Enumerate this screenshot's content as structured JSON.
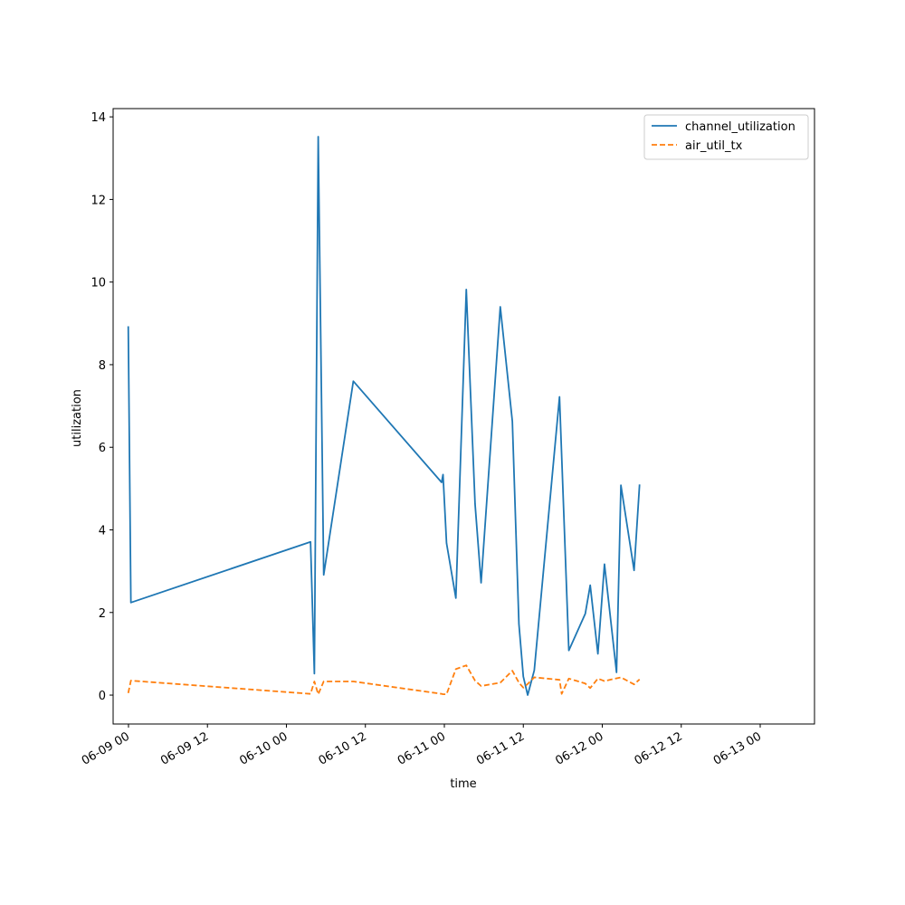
{
  "chart_data": {
    "type": "line",
    "xlabel": "time",
    "ylabel": "utilization",
    "x_axis": {
      "kind": "datetime",
      "range": [
        "2023-06-08 21:40",
        "2023-06-13 08:15"
      ],
      "ticks": [
        {
          "t": "2023-06-09 00:00",
          "label": "06-09 00"
        },
        {
          "t": "2023-06-09 12:00",
          "label": "06-09 12"
        },
        {
          "t": "2023-06-10 00:00",
          "label": "06-10 00"
        },
        {
          "t": "2023-06-10 12:00",
          "label": "06-10 12"
        },
        {
          "t": "2023-06-11 00:00",
          "label": "06-11 00"
        },
        {
          "t": "2023-06-11 12:00",
          "label": "06-11 12"
        },
        {
          "t": "2023-06-12 00:00",
          "label": "06-12 00"
        },
        {
          "t": "2023-06-12 12:00",
          "label": "06-12 12"
        },
        {
          "t": "2023-06-13 00:00",
          "label": "06-13 00"
        }
      ],
      "tick_label_rotation_deg": 30
    },
    "y_axis": {
      "range": [
        -0.7,
        14.2
      ],
      "ticks": [
        0,
        2,
        4,
        6,
        8,
        10,
        12,
        14
      ]
    },
    "grid": false,
    "legend_position": "top-right",
    "series": [
      {
        "name": "channel_utilization",
        "color": "#1f77b4",
        "dash": "solid",
        "points": [
          {
            "t": "2023-06-08 23:58",
            "y": 8.93
          },
          {
            "t": "2023-06-09 00:22",
            "y": 2.24
          },
          {
            "t": "2023-06-10 03:40",
            "y": 3.71
          },
          {
            "t": "2023-06-10 04:15",
            "y": 0.52
          },
          {
            "t": "2023-06-10 04:50",
            "y": 13.52
          },
          {
            "t": "2023-06-10 05:40",
            "y": 2.91
          },
          {
            "t": "2023-06-10 10:10",
            "y": 7.6
          },
          {
            "t": "2023-06-10 23:35",
            "y": 5.15
          },
          {
            "t": "2023-06-10 23:48",
            "y": 5.34
          },
          {
            "t": "2023-06-11 00:20",
            "y": 3.68
          },
          {
            "t": "2023-06-11 01:45",
            "y": 2.35
          },
          {
            "t": "2023-06-11 03:20",
            "y": 9.82
          },
          {
            "t": "2023-06-11 04:40",
            "y": 4.63
          },
          {
            "t": "2023-06-11 05:35",
            "y": 2.72
          },
          {
            "t": "2023-06-11 08:30",
            "y": 9.4
          },
          {
            "t": "2023-06-11 10:20",
            "y": 6.63
          },
          {
            "t": "2023-06-11 11:20",
            "y": 1.72
          },
          {
            "t": "2023-06-11 12:00",
            "y": 0.45
          },
          {
            "t": "2023-06-11 12:40",
            "y": 0.0
          },
          {
            "t": "2023-06-11 13:40",
            "y": 0.6
          },
          {
            "t": "2023-06-11 17:30",
            "y": 7.22
          },
          {
            "t": "2023-06-11 18:55",
            "y": 1.08
          },
          {
            "t": "2023-06-11 21:25",
            "y": 1.97
          },
          {
            "t": "2023-06-11 22:10",
            "y": 2.66
          },
          {
            "t": "2023-06-11 23:20",
            "y": 1.0
          },
          {
            "t": "2023-06-12 00:20",
            "y": 3.17
          },
          {
            "t": "2023-06-12 02:10",
            "y": 0.55
          },
          {
            "t": "2023-06-12 02:50",
            "y": 5.08
          },
          {
            "t": "2023-06-12 04:50",
            "y": 3.02
          },
          {
            "t": "2023-06-12 05:40",
            "y": 5.1
          }
        ]
      },
      {
        "name": "air_util_tx",
        "color": "#ff7f0e",
        "dash": "dashed",
        "points": [
          {
            "t": "2023-06-08 23:58",
            "y": 0.05
          },
          {
            "t": "2023-06-09 00:22",
            "y": 0.35
          },
          {
            "t": "2023-06-10 03:40",
            "y": 0.03
          },
          {
            "t": "2023-06-10 04:15",
            "y": 0.33
          },
          {
            "t": "2023-06-10 04:50",
            "y": 0.02
          },
          {
            "t": "2023-06-10 05:40",
            "y": 0.33
          },
          {
            "t": "2023-06-10 10:10",
            "y": 0.33
          },
          {
            "t": "2023-06-10 23:35",
            "y": 0.03
          },
          {
            "t": "2023-06-10 23:48",
            "y": 0.02
          },
          {
            "t": "2023-06-11 00:20",
            "y": 0.02
          },
          {
            "t": "2023-06-11 01:45",
            "y": 0.63
          },
          {
            "t": "2023-06-11 03:20",
            "y": 0.72
          },
          {
            "t": "2023-06-11 04:40",
            "y": 0.35
          },
          {
            "t": "2023-06-11 05:35",
            "y": 0.22
          },
          {
            "t": "2023-06-11 08:30",
            "y": 0.3
          },
          {
            "t": "2023-06-11 10:20",
            "y": 0.59
          },
          {
            "t": "2023-06-11 11:20",
            "y": 0.3
          },
          {
            "t": "2023-06-11 12:00",
            "y": 0.18
          },
          {
            "t": "2023-06-11 12:40",
            "y": 0.27
          },
          {
            "t": "2023-06-11 13:40",
            "y": 0.43
          },
          {
            "t": "2023-06-11 17:30",
            "y": 0.37
          },
          {
            "t": "2023-06-11 17:50",
            "y": 0.03
          },
          {
            "t": "2023-06-11 18:55",
            "y": 0.4
          },
          {
            "t": "2023-06-11 21:25",
            "y": 0.28
          },
          {
            "t": "2023-06-11 22:10",
            "y": 0.17
          },
          {
            "t": "2023-06-11 23:20",
            "y": 0.4
          },
          {
            "t": "2023-06-12 00:20",
            "y": 0.34
          },
          {
            "t": "2023-06-12 02:50",
            "y": 0.43
          },
          {
            "t": "2023-06-12 04:50",
            "y": 0.26
          },
          {
            "t": "2023-06-12 05:40",
            "y": 0.38
          }
        ]
      }
    ]
  }
}
